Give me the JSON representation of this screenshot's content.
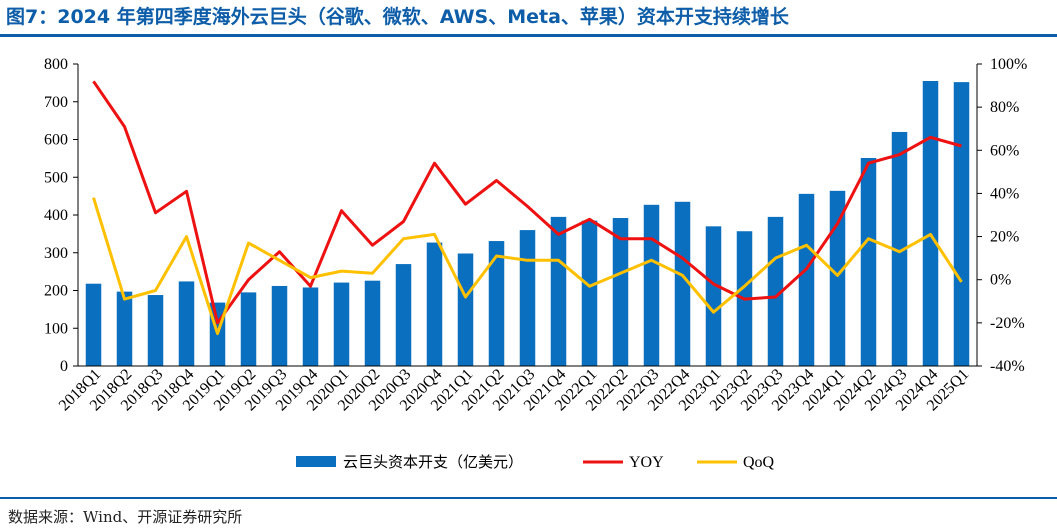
{
  "header": {
    "title": "图7：2024 年第四季度海外云巨头（谷歌、微软、AWS、Meta、苹果）资本开支持续增长"
  },
  "footer": {
    "source": "数据来源：Wind、开源证券研究所"
  },
  "colors": {
    "title": "#0d5da8",
    "bar": "#0b6fbf",
    "yoy": "#ee1111",
    "qoq": "#ffc000"
  },
  "chart_data": {
    "type": "bar",
    "categories": [
      "2018Q1",
      "2018Q2",
      "2018Q3",
      "2018Q4",
      "2019Q1",
      "2019Q2",
      "2019Q3",
      "2019Q4",
      "2020Q1",
      "2020Q2",
      "2020Q3",
      "2020Q4",
      "2021Q1",
      "2021Q2",
      "2021Q3",
      "2021Q4",
      "2022Q1",
      "2022Q2",
      "2022Q3",
      "2022Q4",
      "2023Q1",
      "2023Q2",
      "2023Q3",
      "2023Q4",
      "2024Q1",
      "2024Q2",
      "2024Q3",
      "2024Q4",
      "2025Q1"
    ],
    "series": [
      {
        "name": "云巨头资本开支（亿美元）",
        "type": "bar",
        "axis": "left",
        "values": [
          218,
          197,
          188,
          224,
          168,
          195,
          212,
          208,
          221,
          226,
          270,
          327,
          298,
          331,
          360,
          395,
          385,
          392,
          427,
          435,
          370,
          357,
          395,
          456,
          464,
          551,
          620,
          755,
          752
        ]
      },
      {
        "name": "YOY",
        "type": "line",
        "axis": "right",
        "values": [
          92,
          71,
          31,
          41,
          -20,
          0,
          13,
          -3,
          32,
          16,
          27,
          54,
          35,
          46,
          34,
          21,
          28,
          19,
          19,
          10,
          -2,
          -9,
          -8,
          5,
          26,
          54,
          58,
          66,
          62
        ]
      },
      {
        "name": "QoQ",
        "type": "line",
        "axis": "right",
        "values": [
          38,
          -9,
          -5,
          20,
          -25,
          17,
          9,
          1,
          4,
          3,
          19,
          21,
          -8,
          11,
          9,
          9,
          -3,
          3,
          9,
          2,
          -15,
          -3,
          10,
          16,
          2,
          19,
          13,
          21,
          -1
        ]
      }
    ],
    "y_left": {
      "min": 0,
      "max": 800,
      "ticks": [
        "0",
        "100",
        "200",
        "300",
        "400",
        "500",
        "600",
        "700",
        "800"
      ]
    },
    "y_right": {
      "min": -40,
      "max": 100,
      "ticks": [
        "-40%",
        "-20%",
        "0%",
        "20%",
        "40%",
        "60%",
        "80%",
        "100%"
      ]
    },
    "legend_position": "bottom",
    "grid": false
  }
}
